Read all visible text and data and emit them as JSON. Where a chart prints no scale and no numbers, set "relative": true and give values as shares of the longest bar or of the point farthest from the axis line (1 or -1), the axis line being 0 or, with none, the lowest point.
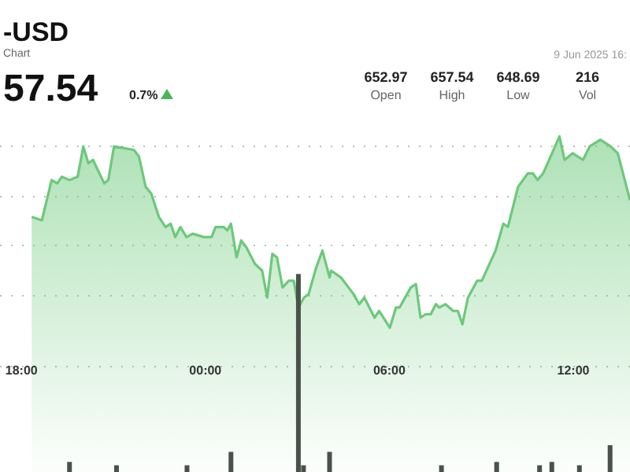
{
  "chart_data": {
    "type": "area",
    "title": "-USD",
    "subtitle": "Chart",
    "relative": true,
    "grid": "y",
    "xlim": [
      "2025-06-08T17:18",
      "2025-06-09T13:51"
    ],
    "xticks": [
      {
        "value": "2025-06-08T18:00",
        "label": "18:00"
      },
      {
        "value": "2025-06-09T00:00",
        "label": "00:00"
      },
      {
        "value": "2025-06-09T06:00",
        "label": "06:00"
      },
      {
        "value": "2025-06-09T12:00",
        "label": "12:00"
      }
    ],
    "annotations": [
      "57.54",
      "0.7%",
      "652.97",
      "Open",
      "657.54",
      "High",
      "648.69",
      "Low",
      "216",
      "Vol",
      "9 Jun 2025 16:"
    ],
    "series": [
      {
        "color": "#6cc97a",
        "x": [
          "2025-06-08T18:20",
          "2025-06-08T18:40",
          "2025-06-08T18:59",
          "2025-06-08T19:10",
          "2025-06-08T19:19",
          "2025-06-08T19:34",
          "2025-06-08T19:50",
          "2025-06-08T20:01",
          "2025-06-08T20:11",
          "2025-06-08T20:20",
          "2025-06-08T20:42",
          "2025-06-08T20:50",
          "2025-06-08T21:01",
          "2025-06-08T21:40",
          "2025-06-08T21:50",
          "2025-06-08T22:03",
          "2025-06-08T22:14",
          "2025-06-08T22:29",
          "2025-06-08T22:42",
          "2025-06-08T22:52",
          "2025-06-08T23:01",
          "2025-06-08T23:11",
          "2025-06-08T23:23",
          "2025-06-08T23:35",
          "2025-06-08T23:57",
          "2025-06-09T00:12",
          "2025-06-09T00:20",
          "2025-06-09T00:36",
          "2025-06-09T00:43",
          "2025-06-09T00:50",
          "2025-06-09T01:01",
          "2025-06-09T01:10",
          "2025-06-09T01:20",
          "2025-06-09T01:37",
          "2025-06-09T01:51",
          "2025-06-09T02:01",
          "2025-06-09T02:11",
          "2025-06-09T02:20",
          "2025-06-09T02:31",
          "2025-06-09T02:43",
          "2025-06-09T02:53",
          "2025-06-09T03:02",
          "2025-06-09T03:13",
          "2025-06-09T03:22",
          "2025-06-09T03:37",
          "2025-06-09T03:49",
          "2025-06-09T04:03",
          "2025-06-09T04:06",
          "2025-06-09T04:25",
          "2025-06-09T04:50",
          "2025-06-09T05:01",
          "2025-06-09T05:11",
          "2025-06-09T05:31",
          "2025-06-09T05:40",
          "2025-06-09T06:01",
          "2025-06-09T06:13",
          "2025-06-09T06:20",
          "2025-06-09T06:42",
          "2025-06-09T06:52",
          "2025-06-09T07:01",
          "2025-06-09T07:11",
          "2025-06-09T07:21",
          "2025-06-09T07:31",
          "2025-06-09T07:38",
          "2025-06-09T07:50",
          "2025-06-09T08:05",
          "2025-06-09T08:14",
          "2025-06-09T08:23",
          "2025-06-09T08:34",
          "2025-06-09T08:52",
          "2025-06-09T09:01",
          "2025-06-09T09:28",
          "2025-06-09T09:43",
          "2025-06-09T09:52",
          "2025-06-09T10:12",
          "2025-06-09T10:31",
          "2025-06-09T10:41",
          "2025-06-09T10:50",
          "2025-06-09T11:01",
          "2025-06-09T11:33",
          "2025-06-09T11:43",
          "2025-06-09T11:59",
          "2025-06-09T12:09",
          "2025-06-09T12:19",
          "2025-06-09T12:32",
          "2025-06-09T12:53",
          "2025-06-09T13:13",
          "2025-06-09T13:27",
          "2025-06-09T13:51"
        ],
        "values": [
          0.76,
          0.75,
          0.87,
          0.86,
          0.88,
          0.87,
          0.88,
          0.97,
          0.92,
          0.93,
          0.86,
          0.87,
          0.97,
          0.96,
          0.94,
          0.85,
          0.83,
          0.76,
          0.73,
          0.74,
          0.7,
          0.73,
          0.7,
          0.71,
          0.7,
          0.7,
          0.73,
          0.73,
          0.72,
          0.74,
          0.64,
          0.69,
          0.67,
          0.62,
          0.6,
          0.52,
          0.65,
          0.64,
          0.55,
          0.57,
          0.57,
          0.49,
          0.52,
          0.53,
          0.61,
          0.66,
          0.58,
          0.6,
          0.58,
          0.53,
          0.5,
          0.52,
          0.46,
          0.48,
          0.43,
          0.49,
          0.49,
          0.55,
          0.56,
          0.46,
          0.47,
          0.47,
          0.5,
          0.49,
          0.5,
          0.48,
          0.48,
          0.44,
          0.52,
          0.57,
          0.57,
          0.66,
          0.74,
          0.73,
          0.85,
          0.89,
          0.89,
          0.87,
          0.89,
          1.0,
          0.93,
          0.95,
          0.94,
          0.93,
          0.97,
          0.99,
          0.97,
          0.95,
          0.81
        ]
      },
      {
        "type": "bar",
        "color": "#4a504a",
        "x": [
          "2025-06-08T19:34",
          "2025-06-08T21:06",
          "2025-06-08T23:24",
          "2025-06-09T00:50",
          "2025-06-09T03:02",
          "2025-06-09T03:12",
          "2025-06-09T04:03",
          "2025-06-09T07:42",
          "2025-06-09T09:30",
          "2025-06-09T10:54",
          "2025-06-09T11:18",
          "2025-06-09T12:12",
          "2025-06-09T13:12"
        ],
        "values": [
          0.03,
          0.02,
          0.02,
          0.06,
          0.59,
          0.02,
          0.06,
          0.02,
          0.03,
          0.02,
          0.03,
          0.02,
          0.08
        ]
      }
    ]
  }
}
